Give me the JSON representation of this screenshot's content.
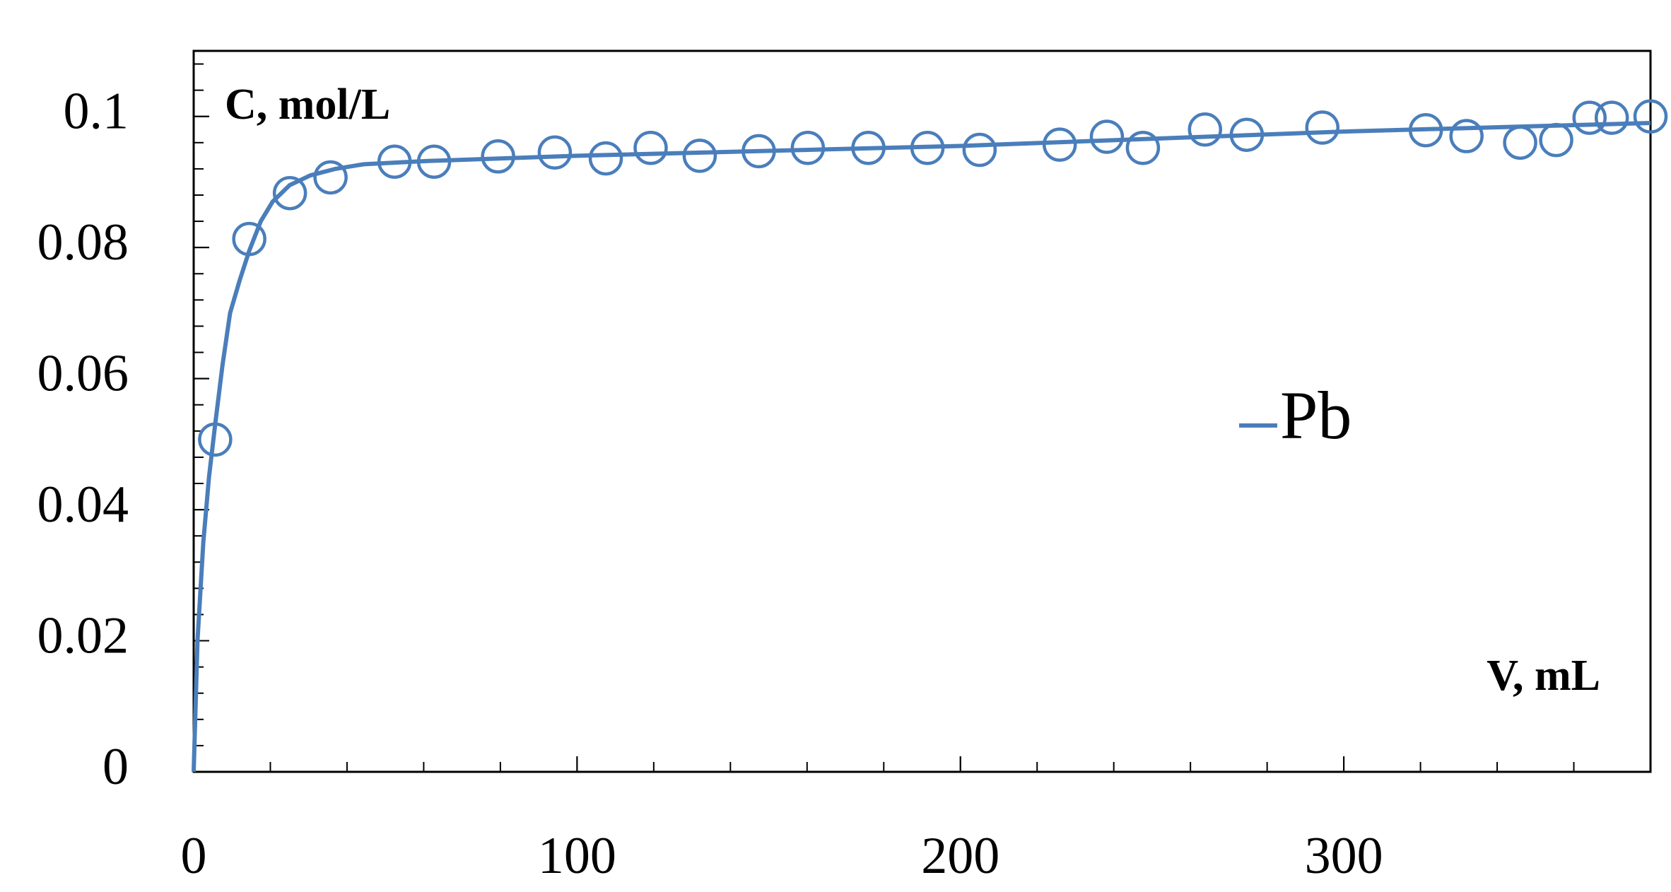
{
  "chart_data": {
    "type": "scatter",
    "y_label": "C, mol/L",
    "x_label": "V, mL",
    "xlim": [
      0,
      380
    ],
    "ylim": [
      0,
      0.11
    ],
    "xticks": [
      0,
      100,
      200,
      300
    ],
    "yticks": [
      0,
      0.02,
      0.04,
      0.06,
      0.08,
      0.1
    ],
    "minor_per_major": 5,
    "legend": "right",
    "series": [
      {
        "name": "Pb",
        "color": "#4a7ebb",
        "x": [
          5.6,
          14.5,
          25.1,
          35.7,
          52.4,
          62.7,
          79.4,
          94.2,
          107.5,
          119.2,
          132.0,
          147.4,
          160.2,
          176.0,
          191.4,
          205.0,
          225.9,
          238.2,
          247.6,
          263.8,
          274.7,
          294.4,
          321.4,
          332.0,
          346.0,
          355.4,
          364.1,
          369.9,
          380.0
        ],
        "values": [
          0.0507,
          0.0813,
          0.0883,
          0.0907,
          0.0931,
          0.0931,
          0.0939,
          0.0945,
          0.0936,
          0.0952,
          0.094,
          0.0947,
          0.0952,
          0.0952,
          0.0952,
          0.0949,
          0.0957,
          0.0969,
          0.0952,
          0.098,
          0.0972,
          0.0983,
          0.0979,
          0.097,
          0.096,
          0.0964,
          0.0998,
          0.0998,
          0.1
        ],
        "fit": {
          "x": [
            0,
            1,
            2.5,
            4,
            5.6,
            7.5,
            9.5,
            12,
            14.5,
            17.5,
            20.6,
            25,
            30.4,
            37,
            44.3,
            61,
            100,
            200,
            300,
            380
          ],
          "values": [
            0,
            0.02,
            0.035,
            0.045,
            0.053,
            0.062,
            0.07,
            0.075,
            0.0795,
            0.084,
            0.087,
            0.0895,
            0.091,
            0.092,
            0.0927,
            0.0932,
            0.094,
            0.0955,
            0.0977,
            0.099
          ]
        }
      }
    ]
  }
}
